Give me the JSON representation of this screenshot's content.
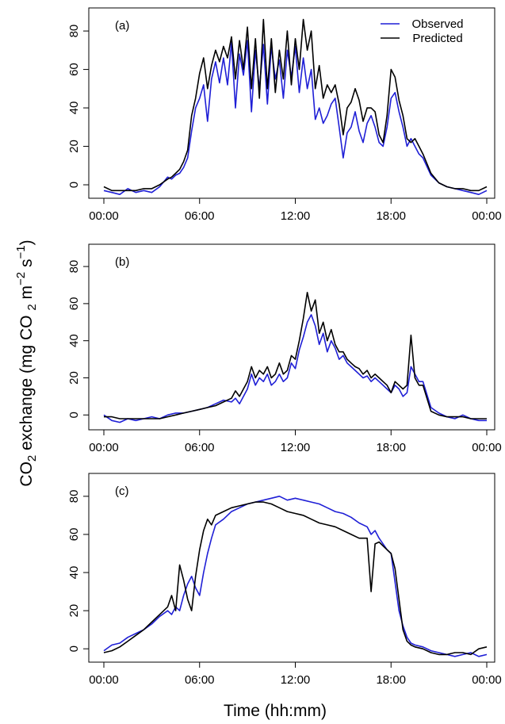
{
  "figure": {
    "xlabel": "Time (hh:mm)",
    "ylabel": "CO2 exchange (mg CO 2 m−2 s−1)"
  },
  "colors": {
    "observed": "#1f1fd6",
    "predicted": "#000000"
  },
  "chart_data": [
    {
      "type": "line",
      "panel_label": "(a)",
      "x_ticks": [
        "00:00",
        "06:00",
        "12:00",
        "18:00",
        "00:00"
      ],
      "y_ticks": [
        0,
        20,
        40,
        60,
        80
      ],
      "xlim": [
        0,
        24
      ],
      "ylim": [
        -7,
        92
      ],
      "legend": {
        "position": "top-right",
        "entries": [
          "Observed",
          "Predicted"
        ]
      },
      "x": [
        0,
        0.5,
        1,
        1.5,
        2,
        2.5,
        3,
        3.5,
        4,
        4.25,
        4.5,
        4.75,
        5,
        5.25,
        5.5,
        5.75,
        6,
        6.25,
        6.5,
        6.75,
        7,
        7.25,
        7.5,
        7.75,
        8,
        8.25,
        8.5,
        8.75,
        9,
        9.25,
        9.5,
        9.75,
        10,
        10.25,
        10.5,
        10.75,
        11,
        11.25,
        11.5,
        11.75,
        12,
        12.25,
        12.5,
        12.75,
        13,
        13.25,
        13.5,
        13.75,
        14,
        14.25,
        14.5,
        14.75,
        15,
        15.25,
        15.5,
        15.75,
        16,
        16.25,
        16.5,
        16.75,
        17,
        17.25,
        17.5,
        17.75,
        18,
        18.25,
        18.5,
        18.75,
        19,
        19.25,
        19.5,
        19.75,
        20,
        20.5,
        21,
        21.5,
        22,
        22.5,
        23,
        23.5,
        24
      ],
      "series": [
        {
          "name": "Observed",
          "color_key": "observed",
          "values": [
            -3,
            -4,
            -5,
            -2,
            -4,
            -3,
            -4,
            -1,
            4,
            3,
            5,
            6,
            9,
            14,
            28,
            40,
            45,
            52,
            33,
            55,
            64,
            53,
            66,
            52,
            74,
            40,
            68,
            57,
            75,
            38,
            70,
            50,
            73,
            42,
            72,
            55,
            65,
            45,
            70,
            56,
            72,
            48,
            66,
            50,
            60,
            34,
            40,
            32,
            36,
            42,
            45,
            30,
            14,
            27,
            30,
            38,
            28,
            22,
            32,
            36,
            30,
            22,
            20,
            30,
            45,
            48,
            38,
            30,
            20,
            24,
            20,
            16,
            14,
            5,
            1,
            -1,
            -2,
            -3,
            -4,
            -5,
            -3
          ]
        },
        {
          "name": "Predicted",
          "color_key": "predicted",
          "values": [
            -1,
            -3,
            -3,
            -3,
            -3,
            -2,
            -2,
            0,
            3,
            4,
            6,
            8,
            12,
            18,
            36,
            45,
            58,
            66,
            50,
            62,
            70,
            64,
            72,
            66,
            77,
            55,
            75,
            60,
            82,
            50,
            76,
            45,
            86,
            50,
            76,
            48,
            70,
            55,
            80,
            52,
            76,
            60,
            86,
            70,
            80,
            50,
            62,
            45,
            52,
            48,
            52,
            42,
            26,
            40,
            43,
            50,
            44,
            33,
            40,
            40,
            38,
            26,
            22,
            36,
            60,
            56,
            44,
            36,
            24,
            22,
            24,
            20,
            16,
            6,
            1,
            -1,
            -2,
            -2,
            -3,
            -3,
            -1
          ]
        }
      ]
    },
    {
      "type": "line",
      "panel_label": "(b)",
      "x_ticks": [
        "00:00",
        "06:00",
        "12:00",
        "18:00",
        "00:00"
      ],
      "y_ticks": [
        0,
        20,
        40,
        60,
        80
      ],
      "xlim": [
        0,
        24
      ],
      "ylim": [
        -8,
        92
      ],
      "x": [
        0,
        0.5,
        1,
        1.5,
        2,
        2.5,
        3,
        3.5,
        4,
        4.5,
        5,
        5.5,
        6,
        6.5,
        7,
        7.5,
        8,
        8.25,
        8.5,
        8.75,
        9,
        9.25,
        9.5,
        9.75,
        10,
        10.25,
        10.5,
        10.75,
        11,
        11.25,
        11.5,
        11.75,
        12,
        12.25,
        12.5,
        12.75,
        13,
        13.25,
        13.5,
        13.75,
        14,
        14.25,
        14.5,
        14.75,
        15,
        15.25,
        15.5,
        15.75,
        16,
        16.25,
        16.5,
        16.75,
        17,
        17.25,
        17.5,
        17.75,
        18,
        18.25,
        18.5,
        18.75,
        19,
        19.25,
        19.5,
        19.75,
        20,
        20.5,
        21,
        21.5,
        22,
        22.5,
        23,
        23.5,
        24
      ],
      "series": [
        {
          "name": "Observed",
          "color_key": "observed",
          "values": [
            0,
            -3,
            -4,
            -2,
            -3,
            -2,
            -1,
            -2,
            0,
            1,
            1,
            2,
            3,
            4,
            6,
            8,
            7,
            9,
            6,
            10,
            14,
            22,
            16,
            20,
            18,
            22,
            16,
            18,
            22,
            18,
            20,
            28,
            25,
            35,
            42,
            50,
            54,
            48,
            38,
            44,
            34,
            40,
            36,
            30,
            32,
            28,
            26,
            24,
            22,
            20,
            21,
            18,
            20,
            18,
            16,
            14,
            12,
            16,
            14,
            10,
            12,
            26,
            22,
            18,
            18,
            4,
            1,
            -1,
            -2,
            0,
            -2,
            -3,
            -3
          ]
        },
        {
          "name": "Predicted",
          "color_key": "predicted",
          "values": [
            -1,
            -1,
            -2,
            -2,
            -2,
            -2,
            -2,
            -2,
            -1,
            0,
            1,
            2,
            3,
            4,
            5,
            7,
            9,
            13,
            10,
            14,
            18,
            26,
            20,
            24,
            22,
            26,
            20,
            22,
            28,
            22,
            24,
            32,
            30,
            40,
            52,
            66,
            56,
            62,
            44,
            50,
            40,
            46,
            38,
            34,
            34,
            30,
            28,
            26,
            25,
            22,
            24,
            20,
            22,
            20,
            18,
            16,
            12,
            18,
            16,
            14,
            16,
            43,
            20,
            16,
            16,
            2,
            0,
            -1,
            -1,
            -1,
            -2,
            -2,
            -2
          ]
        }
      ]
    },
    {
      "type": "line",
      "panel_label": "(c)",
      "x_ticks": [
        "00:00",
        "06:00",
        "12:00",
        "18:00",
        "00:00"
      ],
      "y_ticks": [
        0,
        20,
        40,
        60,
        80
      ],
      "xlim": [
        0,
        24
      ],
      "ylim": [
        -7,
        92
      ],
      "x": [
        0,
        0.5,
        1,
        1.5,
        2,
        2.5,
        3,
        3.5,
        4,
        4.25,
        4.5,
        4.75,
        5,
        5.25,
        5.5,
        5.75,
        6,
        6.25,
        6.5,
        6.75,
        7,
        7.5,
        8,
        8.5,
        9,
        9.5,
        10,
        10.5,
        11,
        11.5,
        12,
        12.5,
        13,
        13.5,
        14,
        14.5,
        15,
        15.5,
        16,
        16.5,
        16.75,
        17,
        17.25,
        17.5,
        17.75,
        18,
        18.25,
        18.5,
        18.75,
        19,
        19.25,
        19.5,
        20,
        20.5,
        21,
        21.5,
        22,
        22.5,
        23,
        23.5,
        24
      ],
      "series": [
        {
          "name": "Observed",
          "color_key": "observed",
          "values": [
            -1,
            2,
            3,
            6,
            8,
            10,
            13,
            17,
            20,
            18,
            22,
            20,
            28,
            34,
            38,
            32,
            28,
            40,
            50,
            58,
            65,
            68,
            72,
            74,
            76,
            77,
            78,
            79,
            80,
            78,
            79,
            78,
            77,
            76,
            74,
            72,
            71,
            69,
            66,
            64,
            60,
            62,
            58,
            55,
            52,
            50,
            35,
            20,
            12,
            6,
            3,
            2,
            1,
            -1,
            -2,
            -3,
            -4,
            -3,
            -2,
            -4,
            -3
          ]
        },
        {
          "name": "Predicted",
          "color_key": "predicted",
          "values": [
            -2,
            -1,
            1,
            4,
            7,
            10,
            14,
            18,
            22,
            28,
            20,
            44,
            36,
            26,
            20,
            38,
            52,
            62,
            68,
            65,
            70,
            72,
            74,
            75,
            76,
            77,
            77,
            76,
            74,
            72,
            71,
            70,
            68,
            66,
            65,
            64,
            62,
            60,
            58,
            58,
            30,
            55,
            56,
            54,
            52,
            50,
            42,
            26,
            10,
            4,
            2,
            1,
            0,
            -2,
            -3,
            -3,
            -2,
            -2,
            -3,
            0,
            1
          ]
        }
      ]
    }
  ]
}
